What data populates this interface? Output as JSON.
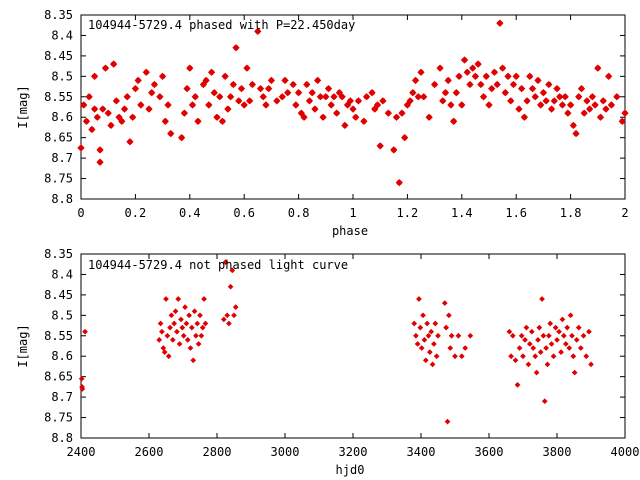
{
  "chart_data": [
    {
      "type": "scatter",
      "title": "104944-5729.4 phased with P=22.450day",
      "xlabel": "phase",
      "ylabel": "I[mag]",
      "xlim": [
        0,
        2
      ],
      "ylim": [
        8.8,
        8.35
      ],
      "y_inverted": true,
      "grid": false,
      "x_ticks": [
        "0",
        "0.2",
        "0.4",
        "0.6",
        "0.8",
        "1",
        "1.2",
        "1.4",
        "1.6",
        "1.8",
        "2"
      ],
      "y_ticks": [
        "8.35",
        "8.4",
        "8.45",
        "8.5",
        "8.55",
        "8.6",
        "8.65",
        "8.7",
        "8.75",
        "8.8"
      ],
      "marker_color": "#e00000",
      "points": [
        [
          0.0,
          8.675
        ],
        [
          0.01,
          8.57
        ],
        [
          0.02,
          8.61
        ],
        [
          0.03,
          8.55
        ],
        [
          0.04,
          8.63
        ],
        [
          0.05,
          8.58
        ],
        [
          0.05,
          8.5
        ],
        [
          0.06,
          8.6
        ],
        [
          0.07,
          8.68
        ],
        [
          0.07,
          8.71
        ],
        [
          0.08,
          8.58
        ],
        [
          0.09,
          8.48
        ],
        [
          0.1,
          8.59
        ],
        [
          0.11,
          8.62
        ],
        [
          0.12,
          8.47
        ],
        [
          0.13,
          8.56
        ],
        [
          0.14,
          8.6
        ],
        [
          0.15,
          8.61
        ],
        [
          0.16,
          8.58
        ],
        [
          0.17,
          8.55
        ],
        [
          0.18,
          8.66
        ],
        [
          0.19,
          8.6
        ],
        [
          0.2,
          8.53
        ],
        [
          0.21,
          8.51
        ],
        [
          0.22,
          8.57
        ],
        [
          0.24,
          8.49
        ],
        [
          0.25,
          8.58
        ],
        [
          0.26,
          8.54
        ],
        [
          0.27,
          8.52
        ],
        [
          0.29,
          8.55
        ],
        [
          0.3,
          8.5
        ],
        [
          0.31,
          8.61
        ],
        [
          0.32,
          8.57
        ],
        [
          0.33,
          8.64
        ],
        [
          0.37,
          8.65
        ],
        [
          0.38,
          8.59
        ],
        [
          0.39,
          8.53
        ],
        [
          0.4,
          8.48
        ],
        [
          0.41,
          8.57
        ],
        [
          0.42,
          8.55
        ],
        [
          0.43,
          8.61
        ],
        [
          0.45,
          8.52
        ],
        [
          0.46,
          8.51
        ],
        [
          0.47,
          8.57
        ],
        [
          0.48,
          8.49
        ],
        [
          0.49,
          8.54
        ],
        [
          0.5,
          8.6
        ],
        [
          0.51,
          8.55
        ],
        [
          0.52,
          8.61
        ],
        [
          0.53,
          8.5
        ],
        [
          0.54,
          8.58
        ],
        [
          0.55,
          8.55
        ],
        [
          0.56,
          8.52
        ],
        [
          0.57,
          8.43
        ],
        [
          0.58,
          8.56
        ],
        [
          0.59,
          8.53
        ],
        [
          0.6,
          8.57
        ],
        [
          0.61,
          8.48
        ],
        [
          0.62,
          8.56
        ],
        [
          0.63,
          8.52
        ],
        [
          0.65,
          8.39
        ],
        [
          0.66,
          8.53
        ],
        [
          0.67,
          8.55
        ],
        [
          0.68,
          8.57
        ],
        [
          0.69,
          8.53
        ],
        [
          0.7,
          8.51
        ],
        [
          0.72,
          8.56
        ],
        [
          0.74,
          8.55
        ],
        [
          0.75,
          8.51
        ],
        [
          0.76,
          8.54
        ],
        [
          0.78,
          8.52
        ],
        [
          0.79,
          8.57
        ],
        [
          0.8,
          8.54
        ],
        [
          0.81,
          8.59
        ],
        [
          0.82,
          8.6
        ],
        [
          0.83,
          8.52
        ],
        [
          0.84,
          8.56
        ],
        [
          0.85,
          8.54
        ],
        [
          0.86,
          8.58
        ],
        [
          0.87,
          8.51
        ],
        [
          0.88,
          8.55
        ],
        [
          0.89,
          8.6
        ],
        [
          0.9,
          8.55
        ],
        [
          0.91,
          8.53
        ],
        [
          0.92,
          8.57
        ],
        [
          0.93,
          8.55
        ],
        [
          0.94,
          8.59
        ],
        [
          0.95,
          8.54
        ],
        [
          0.96,
          8.55
        ],
        [
          0.97,
          8.62
        ],
        [
          0.98,
          8.57
        ],
        [
          0.99,
          8.56
        ],
        [
          1.0,
          8.58
        ],
        [
          1.01,
          8.6
        ],
        [
          1.02,
          8.56
        ],
        [
          1.04,
          8.61
        ],
        [
          1.05,
          8.55
        ],
        [
          1.07,
          8.54
        ],
        [
          1.08,
          8.58
        ],
        [
          1.09,
          8.57
        ],
        [
          1.1,
          8.67
        ],
        [
          1.11,
          8.56
        ],
        [
          1.13,
          8.59
        ],
        [
          1.15,
          8.68
        ],
        [
          1.16,
          8.6
        ],
        [
          1.17,
          8.76
        ],
        [
          1.18,
          8.59
        ],
        [
          1.19,
          8.65
        ],
        [
          1.2,
          8.57
        ],
        [
          1.21,
          8.56
        ],
        [
          1.22,
          8.54
        ],
        [
          1.23,
          8.51
        ],
        [
          1.24,
          8.55
        ],
        [
          1.25,
          8.49
        ],
        [
          1.26,
          8.55
        ],
        [
          1.28,
          8.6
        ],
        [
          1.3,
          8.52
        ],
        [
          1.32,
          8.48
        ],
        [
          1.33,
          8.56
        ],
        [
          1.34,
          8.54
        ],
        [
          1.35,
          8.51
        ],
        [
          1.36,
          8.57
        ],
        [
          1.37,
          8.61
        ],
        [
          1.38,
          8.54
        ],
        [
          1.39,
          8.5
        ],
        [
          1.4,
          8.57
        ],
        [
          1.41,
          8.46
        ],
        [
          1.42,
          8.49
        ],
        [
          1.43,
          8.52
        ],
        [
          1.44,
          8.48
        ],
        [
          1.45,
          8.5
        ],
        [
          1.46,
          8.47
        ],
        [
          1.47,
          8.52
        ],
        [
          1.48,
          8.55
        ],
        [
          1.49,
          8.5
        ],
        [
          1.5,
          8.57
        ],
        [
          1.51,
          8.53
        ],
        [
          1.52,
          8.49
        ],
        [
          1.53,
          8.52
        ],
        [
          1.54,
          8.37
        ],
        [
          1.55,
          8.48
        ],
        [
          1.56,
          8.54
        ],
        [
          1.57,
          8.5
        ],
        [
          1.58,
          8.56
        ],
        [
          1.59,
          8.52
        ],
        [
          1.6,
          8.5
        ],
        [
          1.61,
          8.58
        ],
        [
          1.62,
          8.53
        ],
        [
          1.63,
          8.6
        ],
        [
          1.64,
          8.56
        ],
        [
          1.65,
          8.5
        ],
        [
          1.66,
          8.53
        ],
        [
          1.67,
          8.55
        ],
        [
          1.68,
          8.51
        ],
        [
          1.69,
          8.57
        ],
        [
          1.7,
          8.54
        ],
        [
          1.71,
          8.56
        ],
        [
          1.72,
          8.52
        ],
        [
          1.73,
          8.58
        ],
        [
          1.74,
          8.56
        ],
        [
          1.75,
          8.53
        ],
        [
          1.76,
          8.55
        ],
        [
          1.77,
          8.57
        ],
        [
          1.78,
          8.55
        ],
        [
          1.79,
          8.59
        ],
        [
          1.8,
          8.57
        ],
        [
          1.81,
          8.62
        ],
        [
          1.82,
          8.64
        ],
        [
          1.83,
          8.55
        ],
        [
          1.84,
          8.53
        ],
        [
          1.85,
          8.59
        ],
        [
          1.86,
          8.56
        ],
        [
          1.87,
          8.58
        ],
        [
          1.88,
          8.55
        ],
        [
          1.89,
          8.57
        ],
        [
          1.9,
          8.48
        ],
        [
          1.91,
          8.6
        ],
        [
          1.92,
          8.56
        ],
        [
          1.93,
          8.58
        ],
        [
          1.94,
          8.5
        ],
        [
          1.95,
          8.57
        ],
        [
          1.97,
          8.55
        ],
        [
          1.99,
          8.61
        ],
        [
          2.0,
          8.59
        ]
      ]
    },
    {
      "type": "scatter",
      "title": "104944-5729.4 not phased light curve",
      "xlabel": "hjd0",
      "ylabel": "I[mag]",
      "xlim": [
        2400,
        4000
      ],
      "ylim": [
        8.8,
        8.35
      ],
      "y_inverted": true,
      "grid": false,
      "x_ticks": [
        "2400",
        "2600",
        "2800",
        "3000",
        "3200",
        "3400",
        "3600",
        "3800",
        "4000"
      ],
      "y_ticks": [
        "8.35",
        "8.4",
        "8.45",
        "8.5",
        "8.55",
        "8.6",
        "8.65",
        "8.7",
        "8.75",
        "8.8"
      ],
      "marker_color": "#e00000",
      "points": [
        [
          2402,
          8.655
        ],
        [
          2403,
          8.675
        ],
        [
          2404,
          8.68
        ],
        [
          2412,
          8.54
        ],
        [
          2630,
          8.56
        ],
        [
          2634,
          8.52
        ],
        [
          2638,
          8.54
        ],
        [
          2642,
          8.58
        ],
        [
          2646,
          8.59
        ],
        [
          2650,
          8.46
        ],
        [
          2654,
          8.55
        ],
        [
          2658,
          8.6
        ],
        [
          2662,
          8.53
        ],
        [
          2666,
          8.5
        ],
        [
          2670,
          8.56
        ],
        [
          2674,
          8.52
        ],
        [
          2678,
          8.49
        ],
        [
          2682,
          8.54
        ],
        [
          2686,
          8.46
        ],
        [
          2690,
          8.57
        ],
        [
          2694,
          8.51
        ],
        [
          2698,
          8.53
        ],
        [
          2702,
          8.55
        ],
        [
          2706,
          8.48
        ],
        [
          2710,
          8.52
        ],
        [
          2714,
          8.56
        ],
        [
          2718,
          8.5
        ],
        [
          2722,
          8.58
        ],
        [
          2726,
          8.53
        ],
        [
          2730,
          8.61
        ],
        [
          2734,
          8.49
        ],
        [
          2738,
          8.55
        ],
        [
          2742,
          8.52
        ],
        [
          2746,
          8.57
        ],
        [
          2750,
          8.5
        ],
        [
          2754,
          8.55
        ],
        [
          2758,
          8.53
        ],
        [
          2762,
          8.46
        ],
        [
          2766,
          8.52
        ],
        [
          2820,
          8.51
        ],
        [
          2825,
          8.37
        ],
        [
          2830,
          8.5
        ],
        [
          2835,
          8.52
        ],
        [
          2840,
          8.43
        ],
        [
          2845,
          8.39
        ],
        [
          2850,
          8.5
        ],
        [
          2855,
          8.48
        ],
        [
          3380,
          8.52
        ],
        [
          3385,
          8.55
        ],
        [
          3390,
          8.57
        ],
        [
          3394,
          8.46
        ],
        [
          3398,
          8.53
        ],
        [
          3402,
          8.58
        ],
        [
          3406,
          8.5
        ],
        [
          3410,
          8.56
        ],
        [
          3414,
          8.61
        ],
        [
          3418,
          8.52
        ],
        [
          3422,
          8.55
        ],
        [
          3426,
          8.59
        ],
        [
          3430,
          8.54
        ],
        [
          3434,
          8.62
        ],
        [
          3438,
          8.57
        ],
        [
          3442,
          8.52
        ],
        [
          3446,
          8.6
        ],
        [
          3450,
          8.55
        ],
        [
          3470,
          8.47
        ],
        [
          3474,
          8.53
        ],
        [
          3478,
          8.76
        ],
        [
          3482,
          8.5
        ],
        [
          3486,
          8.58
        ],
        [
          3490,
          8.55
        ],
        [
          3500,
          8.6
        ],
        [
          3510,
          8.55
        ],
        [
          3520,
          8.6
        ],
        [
          3530,
          8.58
        ],
        [
          3545,
          8.55
        ],
        [
          3660,
          8.54
        ],
        [
          3665,
          8.6
        ],
        [
          3670,
          8.55
        ],
        [
          3678,
          8.61
        ],
        [
          3684,
          8.67
        ],
        [
          3690,
          8.58
        ],
        [
          3696,
          8.55
        ],
        [
          3700,
          8.6
        ],
        [
          3706,
          8.56
        ],
        [
          3710,
          8.53
        ],
        [
          3716,
          8.62
        ],
        [
          3720,
          8.57
        ],
        [
          3726,
          8.54
        ],
        [
          3730,
          8.58
        ],
        [
          3736,
          8.6
        ],
        [
          3740,
          8.64
        ],
        [
          3744,
          8.56
        ],
        [
          3748,
          8.53
        ],
        [
          3752,
          8.59
        ],
        [
          3756,
          8.46
        ],
        [
          3760,
          8.55
        ],
        [
          3764,
          8.71
        ],
        [
          3768,
          8.58
        ],
        [
          3772,
          8.62
        ],
        [
          3776,
          8.55
        ],
        [
          3780,
          8.52
        ],
        [
          3784,
          8.57
        ],
        [
          3790,
          8.6
        ],
        [
          3796,
          8.53
        ],
        [
          3800,
          8.56
        ],
        [
          3806,
          8.54
        ],
        [
          3812,
          8.59
        ],
        [
          3816,
          8.51
        ],
        [
          3820,
          8.55
        ],
        [
          3826,
          8.57
        ],
        [
          3830,
          8.53
        ],
        [
          3836,
          8.58
        ],
        [
          3840,
          8.5
        ],
        [
          3844,
          8.55
        ],
        [
          3848,
          8.6
        ],
        [
          3852,
          8.64
        ],
        [
          3858,
          8.56
        ],
        [
          3864,
          8.53
        ],
        [
          3870,
          8.58
        ],
        [
          3878,
          8.55
        ],
        [
          3886,
          8.6
        ],
        [
          3894,
          8.54
        ],
        [
          3900,
          8.62
        ]
      ]
    }
  ]
}
